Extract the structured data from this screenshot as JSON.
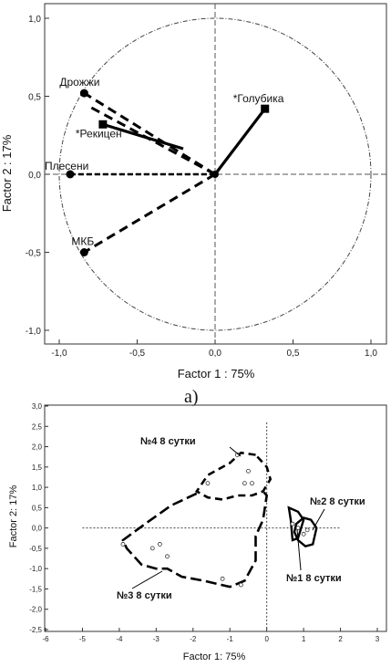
{
  "caption_a": "а)",
  "chart_data": [
    {
      "type": "scatter",
      "xlabel": "Factor 1 : 75%",
      "ylabel": "Factor 2 : 17%",
      "xlim": [
        -1.0,
        1.0
      ],
      "ylim": [
        -1.0,
        1.0
      ],
      "xticks": [
        "-1,0",
        "-0,5",
        "0,0",
        "0,5",
        "1,0"
      ],
      "yticks": [
        "-1,0",
        "-0,5",
        "0,0",
        "0,5",
        "1,0"
      ],
      "grid": false,
      "unit_circle": true,
      "vectors": [
        {
          "label": "Дрожжи",
          "x": -0.84,
          "y": 0.52,
          "marker": "circle"
        },
        {
          "label": "*Рекицен",
          "x": -0.72,
          "y": 0.32,
          "marker": "square"
        },
        {
          "label": "Плесени",
          "x": -0.93,
          "y": 0.0,
          "marker": "circle"
        },
        {
          "label": "МКБ",
          "x": -0.84,
          "y": -0.5,
          "marker": "circle"
        },
        {
          "label": "*Голубика",
          "x": 0.32,
          "y": 0.42,
          "marker": "square"
        }
      ]
    },
    {
      "type": "scatter",
      "xlabel": "Factor 1: 75%",
      "ylabel": "Factor 2: 17%",
      "xlim": [
        -6,
        3
      ],
      "ylim": [
        -2.5,
        3.0
      ],
      "xticks": [
        "-6",
        "-5",
        "-4",
        "-3",
        "-2",
        "-1",
        "0",
        "1",
        "2",
        "3"
      ],
      "yticks": [
        "-2,5",
        "-2,0",
        "-1,5",
        "-1,0",
        "-0,5",
        "0,0",
        "0,5",
        "1,0",
        "1,5",
        "2,0",
        "2,5",
        "3,0"
      ],
      "grid": false,
      "groups": [
        {
          "label": "№4 8 сутки"
        },
        {
          "label": "№2 8 сутки"
        },
        {
          "label": "№1 8 сутки"
        },
        {
          "label": "№3 8 сутки"
        }
      ],
      "points": [
        {
          "x": -0.8,
          "y": 1.8
        },
        {
          "x": -0.5,
          "y": 1.4
        },
        {
          "x": -0.6,
          "y": 1.1
        },
        {
          "x": -0.4,
          "y": 1.1
        },
        {
          "x": -1.6,
          "y": 1.1
        },
        {
          "x": -3.9,
          "y": -0.4
        },
        {
          "x": -3.1,
          "y": -0.5
        },
        {
          "x": -2.9,
          "y": -0.4
        },
        {
          "x": -2.7,
          "y": -0.7
        },
        {
          "x": -1.2,
          "y": -1.25
        },
        {
          "x": -0.7,
          "y": -1.4
        },
        {
          "x": 0.7,
          "y": 0.1
        },
        {
          "x": 0.85,
          "y": 0.0
        },
        {
          "x": 1.0,
          "y": -0.15
        },
        {
          "x": 1.1,
          "y": -0.05
        }
      ]
    }
  ]
}
